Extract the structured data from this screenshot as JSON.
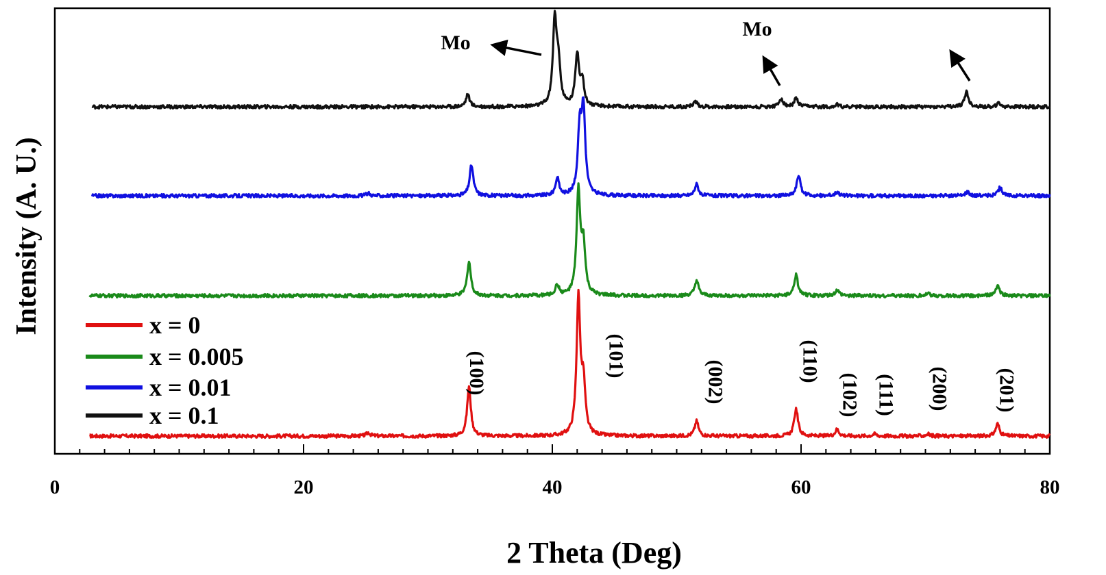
{
  "chart_data": {
    "type": "line",
    "xlabel": "2 Theta (Deg)",
    "ylabel": "Intensity (A. U.)",
    "xlim": [
      0,
      80
    ],
    "x_ticks": [
      0,
      20,
      40,
      60,
      80
    ],
    "grid": false,
    "legend_position": "bottom-left",
    "series": [
      {
        "name": "x = 0",
        "color": "#e01010",
        "peaks": [
          [
            25.2,
            0.05
          ],
          [
            33.3,
            0.72
          ],
          [
            42.1,
            2.0
          ],
          [
            42.5,
            0.7
          ],
          [
            51.6,
            0.22
          ],
          [
            59.6,
            0.4
          ],
          [
            62.9,
            0.1
          ],
          [
            65.9,
            0.03
          ],
          [
            70.2,
            0.03
          ],
          [
            75.8,
            0.18
          ]
        ]
      },
      {
        "name": "x = 0.005",
        "color": "#1a8a1a",
        "peaks": [
          [
            33.3,
            0.5
          ],
          [
            40.4,
            0.15
          ],
          [
            42.1,
            1.5
          ],
          [
            42.5,
            0.7
          ],
          [
            51.6,
            0.22
          ],
          [
            59.6,
            0.3
          ],
          [
            62.9,
            0.08
          ],
          [
            70.2,
            0.03
          ],
          [
            75.8,
            0.15
          ]
        ]
      },
      {
        "name": "x = 0.01",
        "color": "#1010e0",
        "peaks": [
          [
            25.2,
            0.04
          ],
          [
            33.5,
            0.45
          ],
          [
            40.4,
            0.25
          ],
          [
            42.2,
            0.9
          ],
          [
            42.5,
            1.2
          ],
          [
            51.6,
            0.17
          ],
          [
            59.8,
            0.3
          ],
          [
            62.9,
            0.06
          ],
          [
            73.4,
            0.06
          ],
          [
            76.0,
            0.12
          ]
        ]
      },
      {
        "name": "x = 0.1",
        "color": "#111111",
        "peaks": [
          [
            33.2,
            0.18
          ],
          [
            40.2,
            1.25
          ],
          [
            40.5,
            0.55
          ],
          [
            42.0,
            0.75
          ],
          [
            42.4,
            0.35
          ],
          [
            51.5,
            0.08
          ],
          [
            58.4,
            0.12
          ],
          [
            59.6,
            0.12
          ],
          [
            62.9,
            0.03
          ],
          [
            73.3,
            0.22
          ],
          [
            75.9,
            0.05
          ]
        ]
      }
    ],
    "annotations": [
      {
        "text": "(100)",
        "x": 33.4
      },
      {
        "text": "(101)",
        "x": 44.6
      },
      {
        "text": "(002)",
        "x": 52.6
      },
      {
        "text": "(110)",
        "x": 60.2
      },
      {
        "text": "(102)",
        "x": 63.4
      },
      {
        "text": "(111)",
        "x": 66.3
      },
      {
        "text": "(200)",
        "x": 70.6
      },
      {
        "text": "(201)",
        "x": 76.0
      }
    ],
    "phase_labels": [
      {
        "text": "Mo",
        "x": 31.5
      },
      {
        "text": "Mo",
        "x": 57.0
      }
    ]
  }
}
